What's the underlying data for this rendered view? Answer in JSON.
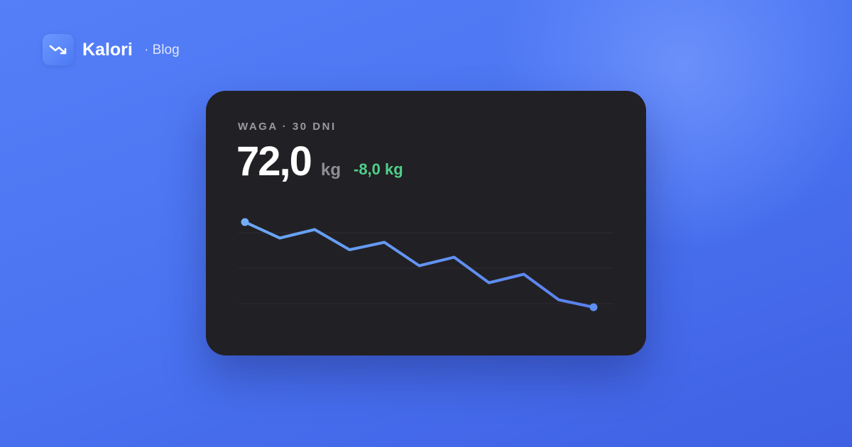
{
  "brand": {
    "name": "Kalori",
    "section": "· Blog"
  },
  "card": {
    "label": "WAGA · 30 DNI",
    "value": "72,0",
    "unit": "kg",
    "change": "-8,0 kg"
  },
  "chart_data": {
    "type": "line",
    "series": [
      {
        "color": "#5f8ff2",
        "values": [
          80,
          78.5,
          79.3,
          77.4,
          78.1,
          75.9,
          76.7,
          74.3,
          75.1,
          72.7,
          72
        ]
      }
    ]
  }
}
